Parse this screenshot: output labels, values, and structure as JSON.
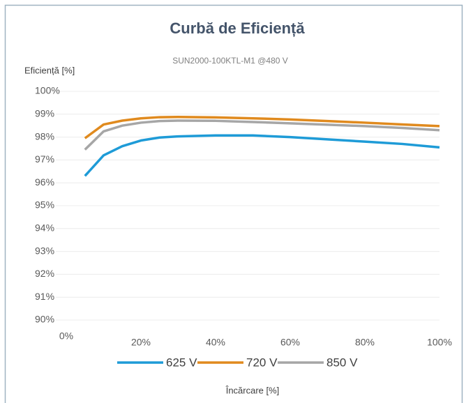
{
  "chart_data": {
    "type": "line",
    "title": "Curbă de Eficiență",
    "subtitle": "SUN2000-100KTL-M1  @480  V",
    "y_label": "Eficiență [%]",
    "x_label": "Încărcare [%]",
    "x": [
      5,
      10,
      15,
      20,
      25,
      30,
      40,
      50,
      60,
      70,
      80,
      90,
      100
    ],
    "series": [
      {
        "name": "625 V",
        "color": "#1e9bd7",
        "values": [
          96.3,
          97.2,
          97.6,
          97.85,
          97.98,
          98.03,
          98.07,
          98.07,
          98.0,
          97.9,
          97.8,
          97.7,
          97.55
        ]
      },
      {
        "name": "720 V",
        "color": "#e08a1e",
        "values": [
          97.95,
          98.55,
          98.72,
          98.82,
          98.87,
          98.88,
          98.86,
          98.82,
          98.77,
          98.7,
          98.63,
          98.55,
          98.48
        ]
      },
      {
        "name": "850 V",
        "color": "#a6a6a6",
        "values": [
          97.45,
          98.25,
          98.5,
          98.63,
          98.7,
          98.72,
          98.71,
          98.66,
          98.6,
          98.54,
          98.48,
          98.4,
          98.3
        ]
      }
    ],
    "xlim": [
      0,
      100
    ],
    "xticks": [
      {
        "value": 0,
        "label": "0%"
      },
      {
        "value": 20,
        "label": "20%"
      },
      {
        "value": 40,
        "label": "40%"
      },
      {
        "value": 60,
        "label": "60%"
      },
      {
        "value": 80,
        "label": "80%"
      },
      {
        "value": 100,
        "label": "100%"
      }
    ],
    "ylim": [
      90,
      100
    ],
    "yticks": [
      {
        "value": 90,
        "label": "90%"
      },
      {
        "value": 91,
        "label": "91%"
      },
      {
        "value": 92,
        "label": "92%"
      },
      {
        "value": 93,
        "label": "93%"
      },
      {
        "value": 94,
        "label": "94%"
      },
      {
        "value": 95,
        "label": "95%"
      },
      {
        "value": 96,
        "label": "96%"
      },
      {
        "value": 97,
        "label": "97%"
      },
      {
        "value": 98,
        "label": "98%"
      },
      {
        "value": 99,
        "label": "99%"
      },
      {
        "value": 100,
        "label": "100%"
      }
    ],
    "grid": true,
    "legend": "bottom"
  }
}
